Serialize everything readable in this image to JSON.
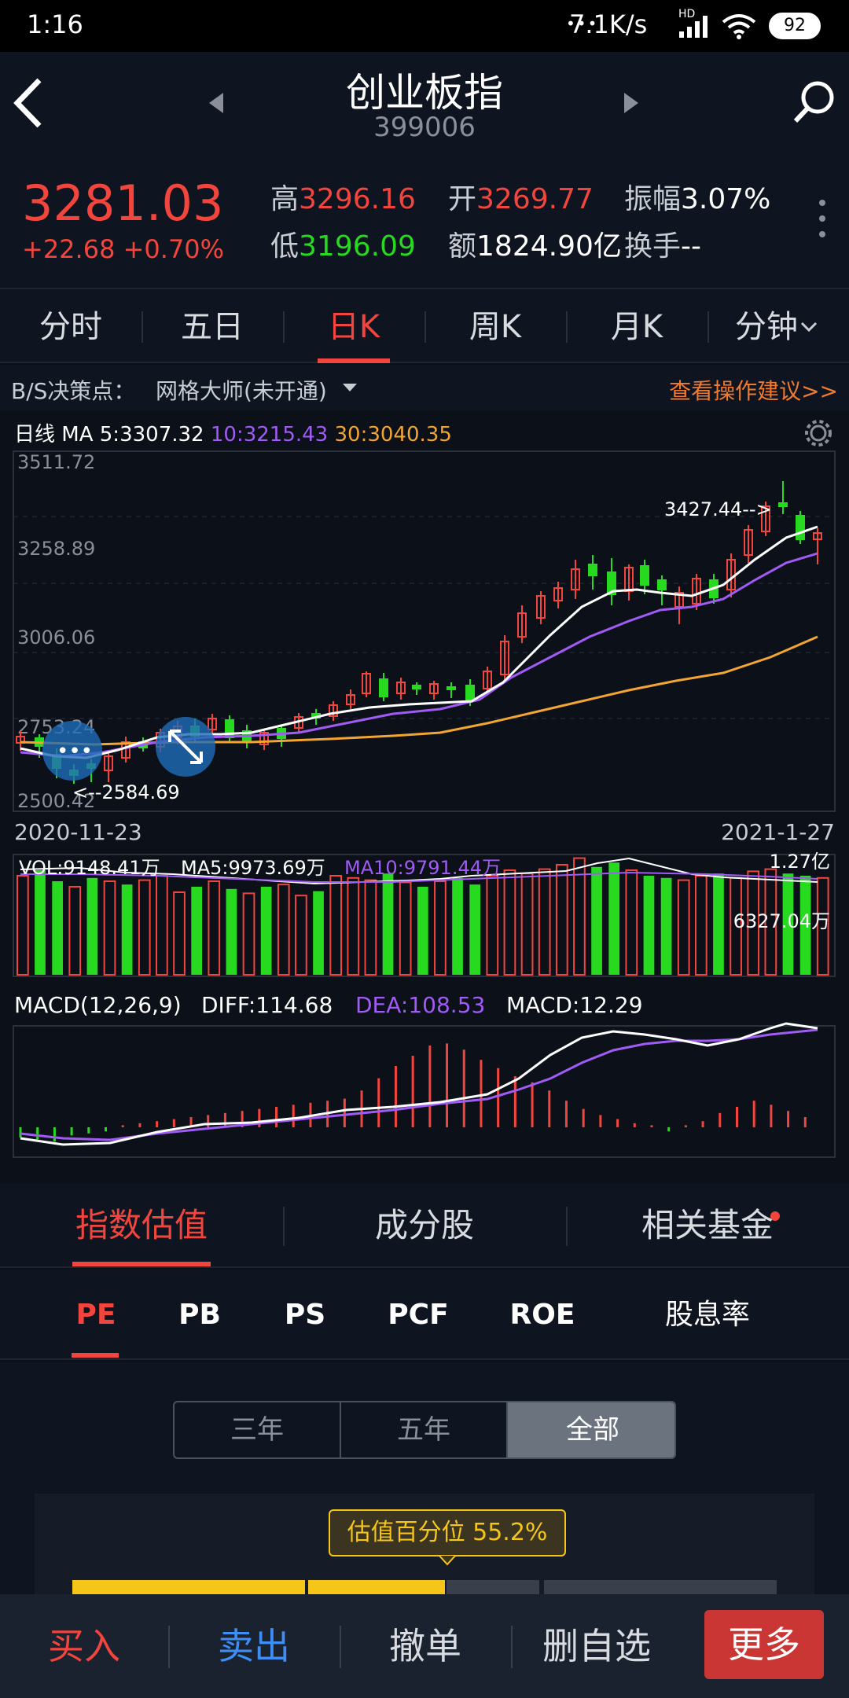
{
  "status": {
    "time": "1:16",
    "speed": "7.1K/s",
    "net_badge": "HD",
    "battery": "92"
  },
  "header": {
    "title": "创业板指",
    "code": "399006"
  },
  "quote": {
    "price": "3281.03",
    "change": "+22.68 +0.70%",
    "high_label": "高",
    "high": "3296.16",
    "open_label": "开",
    "open": "3269.77",
    "amp_label": "振幅",
    "amp": "3.07%",
    "low_label": "低",
    "low": "3196.09",
    "amount_label": "额",
    "amount": "1824.90亿",
    "turnover_label": "换手",
    "turnover": "--"
  },
  "tabs": [
    "分时",
    "五日",
    "日K",
    "周K",
    "月K",
    "分钟"
  ],
  "bs": {
    "label": "B/S决策点：",
    "select": "网格大师(未开通)",
    "advice": "查看操作建议>>"
  },
  "ma": {
    "prefix": "日线",
    "ma5": "MA 5:3307.32",
    "ma10": "10:3215.43",
    "ma30": "30:3040.35"
  },
  "kline": {
    "yticks": [
      "3511.72",
      "3258.89",
      "3006.06",
      "2753.24",
      "2500.42"
    ],
    "max_note": "3427.44-->",
    "min_note": "<--2584.69",
    "date_start": "2020-11-23",
    "date_end": "2021-1-27"
  },
  "vol": {
    "vol": "VOL:9148.41万",
    "ma5": "MA5:9973.69万",
    "ma10": "MA10:9791.44万",
    "top": "1.27亿",
    "mid": "6327.04万"
  },
  "macd": {
    "name": "MACD(12,26,9)",
    "diff": "DIFF:114.68",
    "dea": "DEA:108.53",
    "macd": "MACD:12.29"
  },
  "val_tabs": [
    "指数估值",
    "成分股",
    "相关基金"
  ],
  "metric_tabs": [
    "PE",
    "PB",
    "PS",
    "PCF",
    "ROE",
    "股息率"
  ],
  "range": [
    "三年",
    "五年",
    "全部"
  ],
  "percentile": "估值百分位 55.2%",
  "bottom": [
    "买入",
    "卖出",
    "撤单",
    "删自选",
    "更多"
  ],
  "colors": {
    "up": "#f2453d",
    "down": "#27d91f",
    "ma5": "#ffffff",
    "ma10": "#a15bf5",
    "ma30": "#f2a531",
    "accent": "#f2453d",
    "blue": "#3d8ef5"
  }
}
